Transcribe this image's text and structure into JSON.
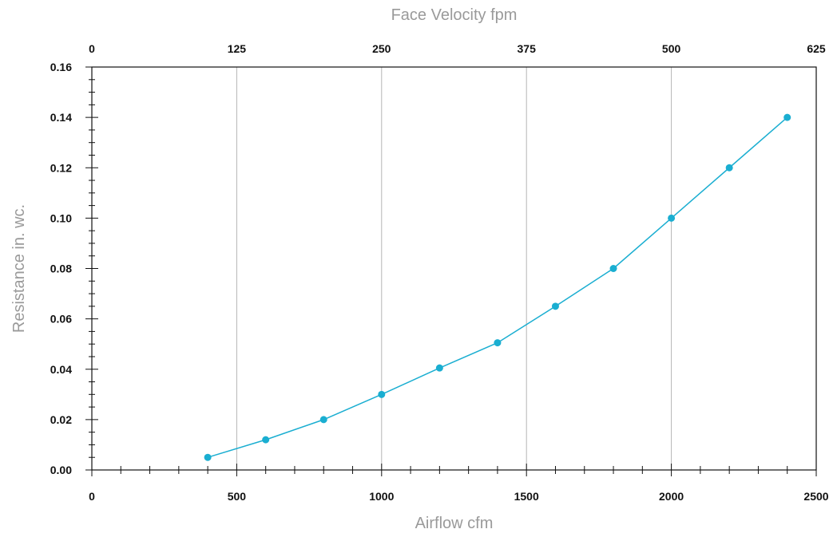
{
  "chart_data": {
    "type": "line",
    "xlabel": "Airflow cfm",
    "ylabel": "Resistance in. wc.",
    "x2label": "Face Velocity fpm",
    "xlim": [
      0,
      2500
    ],
    "ylim": [
      0,
      0.16
    ],
    "x2lim": [
      0,
      625
    ],
    "x_ticks": [
      "0",
      "500",
      "1000",
      "1500",
      "2000",
      "2500"
    ],
    "x2_ticks": [
      "0",
      "125",
      "250",
      "375",
      "500",
      "625"
    ],
    "y_ticks": [
      "0.00",
      "0.02",
      "0.04",
      "0.06",
      "0.08",
      "0.10",
      "0.12",
      "0.14",
      "0.16"
    ],
    "grid": "vertical lines at major x ticks",
    "colors": {
      "series": "#1aaed1",
      "grid": "#b5b5b5",
      "axis": "#111111",
      "title": "#9a9a9a"
    },
    "x": [
      400,
      600,
      800,
      1000,
      1200,
      1400,
      1600,
      1800,
      2000,
      2200,
      2400
    ],
    "y": [
      0.005,
      0.012,
      0.02,
      0.03,
      0.0405,
      0.0505,
      0.065,
      0.08,
      0.1,
      0.12,
      0.14
    ]
  }
}
